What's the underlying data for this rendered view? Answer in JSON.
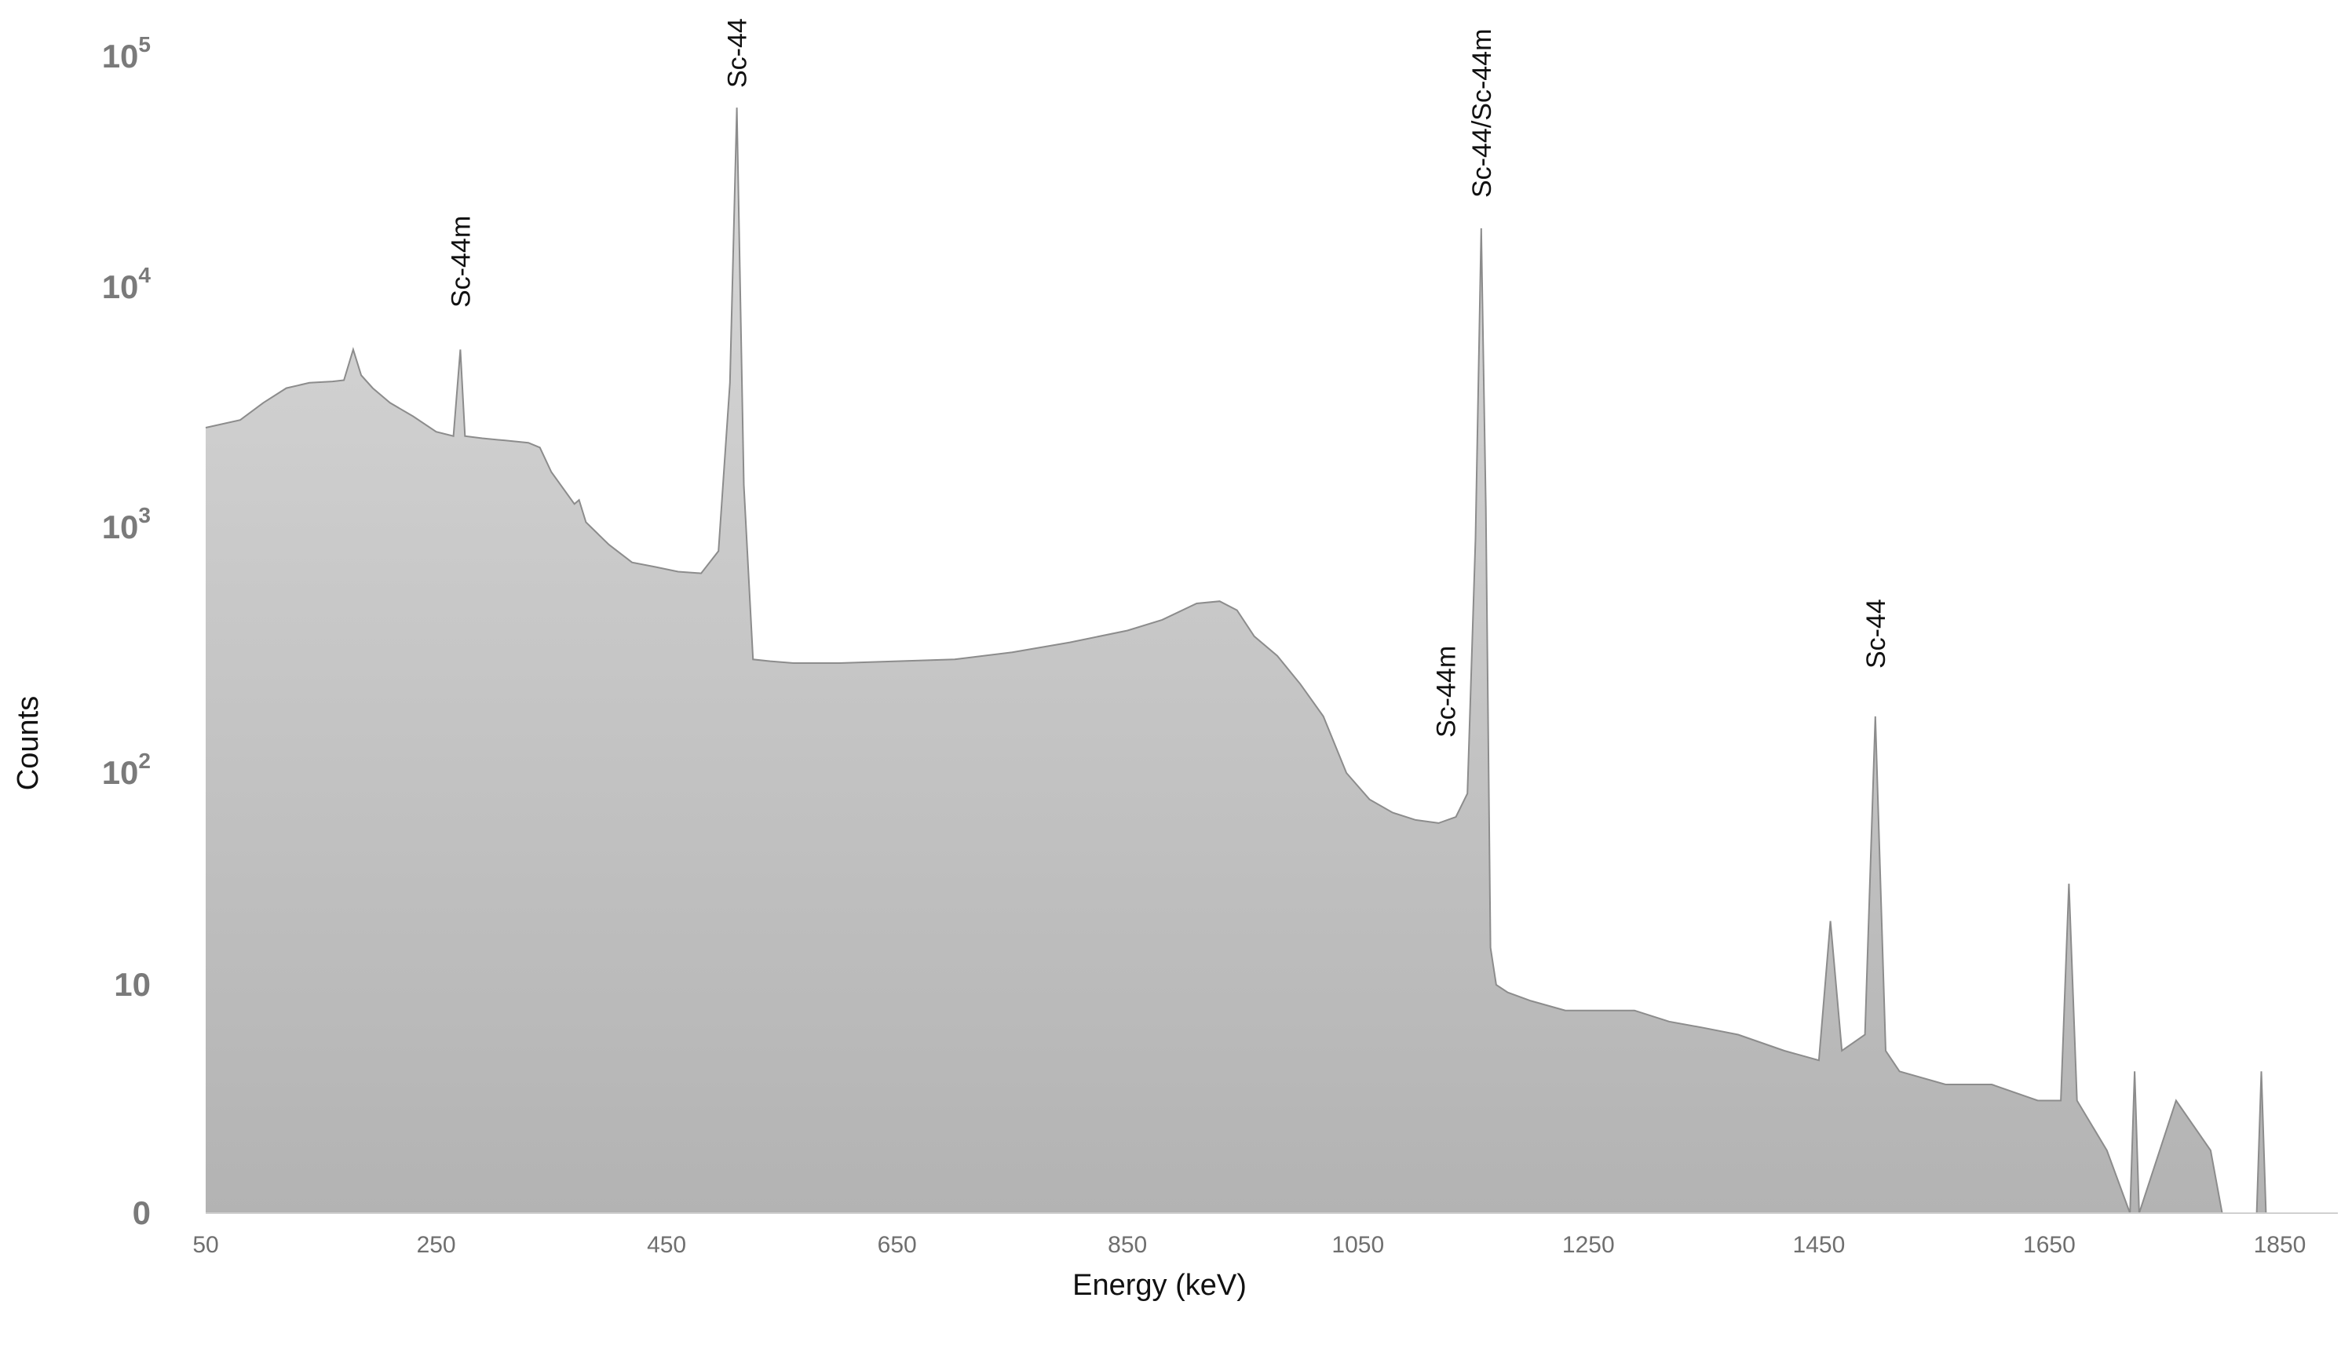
{
  "chart_data": {
    "type": "area",
    "xlabel": "Energy (keV)",
    "ylabel": "Counts",
    "x_scale": "linear",
    "y_scale": "log",
    "xlim": [
      50,
      1900
    ],
    "x_ticks": [
      "50",
      "250",
      "450",
      "650",
      "850",
      "1050",
      "1250",
      "1450",
      "1650",
      "1850"
    ],
    "y_ticks": [
      {
        "base": "0",
        "exp": ""
      },
      {
        "base": "10",
        "exp": ""
      },
      {
        "base": "10",
        "exp": "2"
      },
      {
        "base": "10",
        "exp": "3"
      },
      {
        "base": "10",
        "exp": "4"
      },
      {
        "base": "10",
        "exp": "5"
      }
    ],
    "grid": false,
    "legend": "none",
    "fill_color": "#c4c4c4",
    "line_color": "#8c8c8c",
    "annotations": [
      {
        "text": "Sc-44m",
        "x": 271
      },
      {
        "text": "Sc-44",
        "x": 511
      },
      {
        "text": "Sc-44m",
        "x": 1126
      },
      {
        "text": "Sc-44/Sc-44m",
        "x": 1157
      },
      {
        "text": "Sc-44",
        "x": 1499
      }
    ],
    "series": [
      {
        "x": [
          50,
          80,
          100,
          120,
          140,
          160,
          170,
          178,
          185,
          195,
          210,
          230,
          250,
          265,
          271,
          275,
          290,
          310,
          330,
          340,
          350,
          370,
          374,
          380,
          400,
          420,
          440,
          460,
          480,
          495,
          505,
          511,
          517,
          525,
          540,
          560,
          600,
          650,
          700,
          750,
          800,
          850,
          880,
          910,
          930,
          945,
          960,
          980,
          1000,
          1020,
          1040,
          1060,
          1080,
          1100,
          1120,
          1135,
          1145,
          1152,
          1157,
          1161,
          1165,
          1170,
          1180,
          1200,
          1230,
          1260,
          1290,
          1320,
          1350,
          1380,
          1420,
          1450,
          1460,
          1470,
          1490,
          1499,
          1508,
          1520,
          1560,
          1600,
          1640,
          1660,
          1667,
          1674,
          1700,
          1720,
          1724,
          1728,
          1760,
          1790,
          1800,
          1830,
          1834,
          1838,
          1860
        ],
        "y": [
          2600,
          2800,
          3300,
          3800,
          4000,
          4050,
          4100,
          5500,
          4300,
          3800,
          3300,
          2900,
          2500,
          2400,
          5500,
          2400,
          2350,
          2300,
          2250,
          2150,
          1700,
          1250,
          1300,
          1050,
          850,
          720,
          690,
          660,
          650,
          800,
          4000,
          60000,
          1500,
          290,
          285,
          280,
          280,
          285,
          290,
          310,
          340,
          380,
          420,
          490,
          500,
          460,
          360,
          300,
          230,
          170,
          100,
          75,
          65,
          60,
          58,
          62,
          80,
          900,
          18000,
          1200,
          15,
          10,
          9,
          8,
          7,
          7,
          7,
          6,
          5.5,
          5,
          4,
          3.5,
          20,
          4,
          5,
          170,
          4,
          3,
          2.5,
          2.5,
          2,
          2,
          30,
          2,
          1,
          0,
          3,
          0,
          2,
          1,
          0,
          0,
          3,
          0,
          0
        ]
      }
    ]
  }
}
